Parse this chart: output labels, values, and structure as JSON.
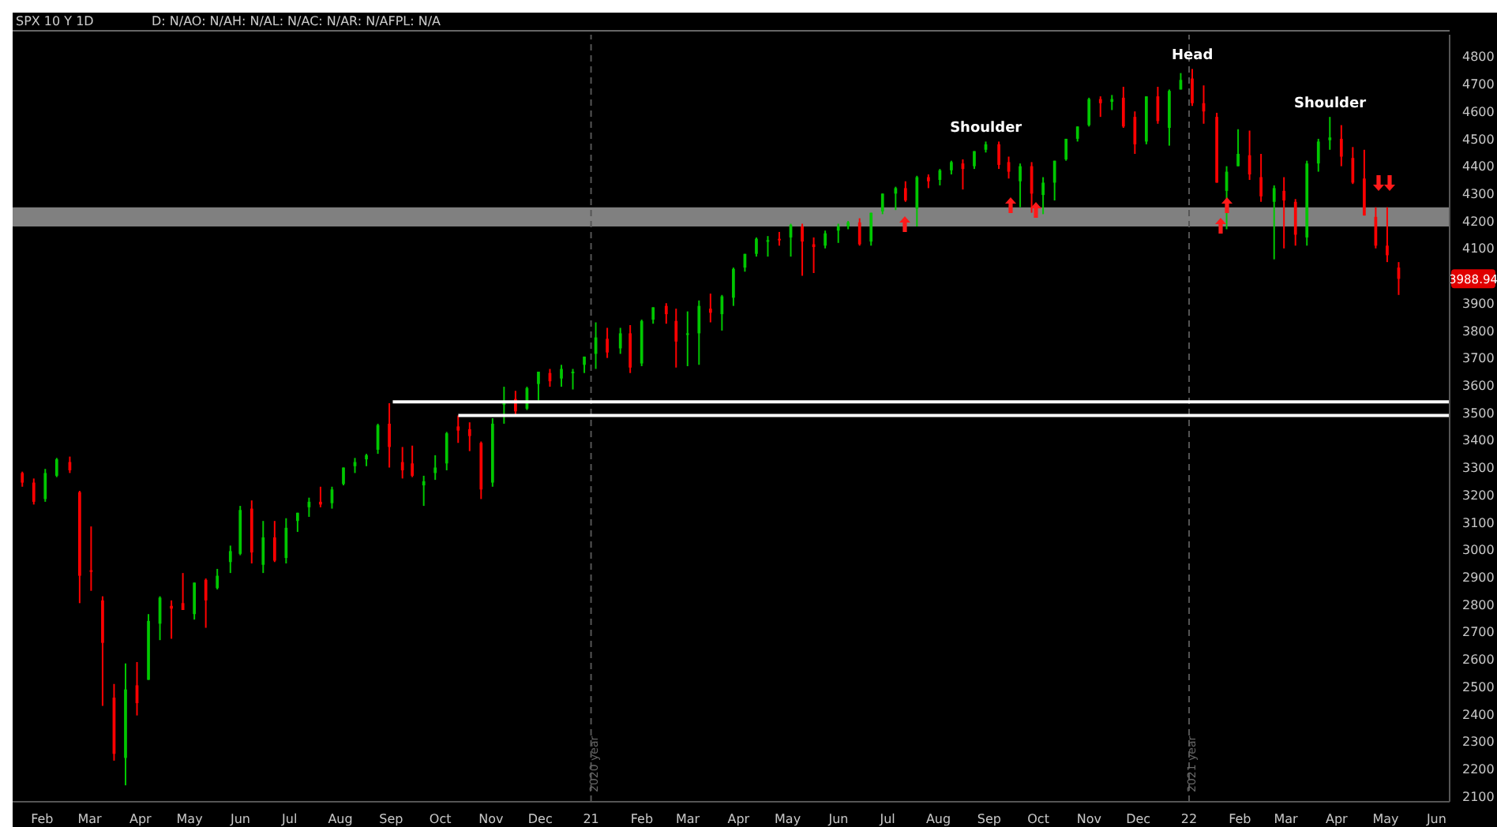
{
  "chart_data": {
    "type": "candlestick",
    "title": "SPX 10 Y 1D",
    "annotations": [
      "D: N/AO: N/AH: N/AL: N/AC: N/AR: N/AFPL: N/A",
      {
        "text": "Shoulder",
        "x": "2021-08-30",
        "y": 4490
      },
      {
        "text": "Head",
        "x": "2022-01-03",
        "y": 4755
      },
      {
        "text": "Shoulder",
        "x": "2022-03-28",
        "y": 4580
      },
      {
        "text": "3988.94",
        "y": 3988.94
      }
    ],
    "x": [
      "2020-01-20",
      "2020-01-27",
      "2020-02-03",
      "2020-02-10",
      "2020-02-18",
      "2020-02-24",
      "2020-03-02",
      "2020-03-09",
      "2020-03-16",
      "2020-03-23",
      "2020-03-30",
      "2020-04-06",
      "2020-04-13",
      "2020-04-20",
      "2020-04-27",
      "2020-05-04",
      "2020-05-11",
      "2020-05-18",
      "2020-05-26",
      "2020-06-01",
      "2020-06-08",
      "2020-06-15",
      "2020-06-22",
      "2020-06-29",
      "2020-07-06",
      "2020-07-13",
      "2020-07-20",
      "2020-07-27",
      "2020-08-03",
      "2020-08-10",
      "2020-08-17",
      "2020-08-24",
      "2020-08-31",
      "2020-09-08",
      "2020-09-14",
      "2020-09-21",
      "2020-09-28",
      "2020-10-05",
      "2020-10-12",
      "2020-10-19",
      "2020-10-26",
      "2020-11-02",
      "2020-11-09",
      "2020-11-16",
      "2020-11-23",
      "2020-11-30",
      "2020-12-07",
      "2020-12-14",
      "2020-12-21",
      "2020-12-28",
      "2021-01-04",
      "2021-01-11",
      "2021-01-19",
      "2021-01-25",
      "2021-02-01",
      "2021-02-08",
      "2021-02-16",
      "2021-02-22",
      "2021-03-01",
      "2021-03-08",
      "2021-03-15",
      "2021-03-22",
      "2021-03-29",
      "2021-04-05",
      "2021-04-12",
      "2021-04-19",
      "2021-04-26",
      "2021-05-03",
      "2021-05-10",
      "2021-05-17",
      "2021-05-24",
      "2021-06-01",
      "2021-06-07",
      "2021-06-14",
      "2021-06-21",
      "2021-06-28",
      "2021-07-06",
      "2021-07-12",
      "2021-07-19",
      "2021-07-26",
      "2021-08-02",
      "2021-08-09",
      "2021-08-16",
      "2021-08-23",
      "2021-08-30",
      "2021-09-07",
      "2021-09-13",
      "2021-09-20",
      "2021-09-27",
      "2021-10-04",
      "2021-10-11",
      "2021-10-18",
      "2021-10-25",
      "2021-11-01",
      "2021-11-08",
      "2021-11-15",
      "2021-11-22",
      "2021-11-29",
      "2021-12-06",
      "2021-12-13",
      "2021-12-20",
      "2021-12-27",
      "2022-01-03",
      "2022-01-10",
      "2022-01-18",
      "2022-01-24",
      "2022-01-31",
      "2022-02-07",
      "2022-02-14",
      "2022-02-22",
      "2022-02-28",
      "2022-03-07",
      "2022-03-14",
      "2022-03-21",
      "2022-03-28",
      "2022-04-04",
      "2022-04-11",
      "2022-04-18",
      "2022-04-25",
      "2022-05-02",
      "2022-05-09"
    ],
    "ohlc": [
      [
        3280,
        3285,
        3230,
        3245
      ],
      [
        3245,
        3260,
        3165,
        3175
      ],
      [
        3185,
        3295,
        3175,
        3280
      ],
      [
        3270,
        3335,
        3265,
        3330
      ],
      [
        3320,
        3340,
        3280,
        3290
      ],
      [
        3210,
        3215,
        2805,
        2905
      ],
      [
        2925,
        3085,
        2850,
        2920
      ],
      [
        2815,
        2830,
        2430,
        2660
      ],
      [
        2460,
        2510,
        2230,
        2255
      ],
      [
        2240,
        2585,
        2140,
        2490
      ],
      [
        2505,
        2590,
        2395,
        2440
      ],
      [
        2525,
        2765,
        2525,
        2740
      ],
      [
        2730,
        2830,
        2670,
        2825
      ],
      [
        2795,
        2815,
        2675,
        2785
      ],
      [
        2805,
        2915,
        2780,
        2780
      ],
      [
        2765,
        2880,
        2745,
        2880
      ],
      [
        2890,
        2895,
        2715,
        2815
      ],
      [
        2860,
        2930,
        2855,
        2905
      ],
      [
        2955,
        3015,
        2915,
        2995
      ],
      [
        2985,
        3160,
        2980,
        3145
      ],
      [
        3150,
        3180,
        2950,
        2990
      ],
      [
        2945,
        3105,
        2915,
        3045
      ],
      [
        3045,
        3105,
        2955,
        2960
      ],
      [
        2970,
        3115,
        2950,
        3080
      ],
      [
        3105,
        3135,
        3065,
        3135
      ],
      [
        3155,
        3190,
        3120,
        3175
      ],
      [
        3175,
        3230,
        3155,
        3165
      ],
      [
        3170,
        3230,
        3150,
        3220
      ],
      [
        3240,
        3300,
        3235,
        3300
      ],
      [
        3305,
        3335,
        3280,
        3320
      ],
      [
        3330,
        3350,
        3305,
        3345
      ],
      [
        3365,
        3460,
        3350,
        3455
      ],
      [
        3460,
        3535,
        3300,
        3375
      ],
      [
        3320,
        3375,
        3260,
        3290
      ],
      [
        3315,
        3380,
        3265,
        3270
      ],
      [
        3235,
        3270,
        3160,
        3250
      ],
      [
        3280,
        3345,
        3255,
        3300
      ],
      [
        3315,
        3430,
        3290,
        3425
      ],
      [
        3450,
        3490,
        3390,
        3435
      ],
      [
        3440,
        3465,
        3360,
        3415
      ],
      [
        3390,
        3395,
        3185,
        3220
      ],
      [
        3245,
        3480,
        3230,
        3460
      ],
      [
        3530,
        3595,
        3460,
        3535
      ],
      [
        3550,
        3580,
        3490,
        3505
      ],
      [
        3515,
        3595,
        3510,
        3590
      ],
      [
        3605,
        3650,
        3545,
        3650
      ],
      [
        3645,
        3660,
        3595,
        3615
      ],
      [
        3625,
        3675,
        3595,
        3660
      ],
      [
        3645,
        3660,
        3585,
        3650
      ],
      [
        3675,
        3705,
        3645,
        3705
      ],
      [
        3715,
        3830,
        3660,
        3775
      ],
      [
        3770,
        3810,
        3700,
        3720
      ],
      [
        3735,
        3810,
        3715,
        3790
      ],
      [
        3790,
        3820,
        3645,
        3665
      ],
      [
        3680,
        3840,
        3670,
        3835
      ],
      [
        3840,
        3885,
        3825,
        3885
      ],
      [
        3890,
        3900,
        3825,
        3860
      ],
      [
        3835,
        3880,
        3665,
        3760
      ],
      [
        3790,
        3870,
        3670,
        3790
      ],
      [
        3790,
        3910,
        3675,
        3890
      ],
      [
        3880,
        3935,
        3830,
        3865
      ],
      [
        3860,
        3930,
        3800,
        3925
      ],
      [
        3920,
        4030,
        3890,
        4025
      ],
      [
        4030,
        4080,
        4015,
        4080
      ],
      [
        4080,
        4140,
        4070,
        4135
      ],
      [
        4130,
        4145,
        4070,
        4130
      ],
      [
        4135,
        4160,
        4110,
        4130
      ],
      [
        4140,
        4190,
        4070,
        4185
      ],
      [
        4180,
        4190,
        4000,
        4125
      ],
      [
        4115,
        4140,
        4010,
        4105
      ],
      [
        4110,
        4165,
        4100,
        4155
      ],
      [
        4165,
        4190,
        4120,
        4180
      ],
      [
        4180,
        4200,
        4170,
        4195
      ],
      [
        4195,
        4210,
        4110,
        4115
      ],
      [
        4125,
        4230,
        4110,
        4230
      ],
      [
        4235,
        4300,
        4225,
        4300
      ],
      [
        4300,
        4325,
        4240,
        4320
      ],
      [
        4320,
        4345,
        4270,
        4275
      ],
      [
        4245,
        4365,
        4180,
        4360
      ],
      [
        4360,
        4370,
        4320,
        4345
      ],
      [
        4350,
        4390,
        4330,
        4385
      ],
      [
        4385,
        4420,
        4370,
        4415
      ],
      [
        4410,
        4425,
        4315,
        4390
      ],
      [
        4400,
        4455,
        4390,
        4455
      ],
      [
        4460,
        4490,
        4450,
        4480
      ],
      [
        4480,
        4490,
        4390,
        4405
      ],
      [
        4415,
        4435,
        4355,
        4380
      ],
      [
        4345,
        4410,
        4250,
        4400
      ],
      [
        4400,
        4415,
        4230,
        4300
      ],
      [
        4295,
        4360,
        4225,
        4340
      ],
      [
        4340,
        4420,
        4275,
        4420
      ],
      [
        4425,
        4500,
        4420,
        4500
      ],
      [
        4500,
        4545,
        4490,
        4545
      ],
      [
        4550,
        4650,
        4545,
        4645
      ],
      [
        4645,
        4655,
        4580,
        4630
      ],
      [
        4635,
        4660,
        4605,
        4645
      ],
      [
        4650,
        4690,
        4540,
        4545
      ],
      [
        4580,
        4600,
        4445,
        4480
      ],
      [
        4490,
        4655,
        4480,
        4655
      ],
      [
        4655,
        4690,
        4555,
        4565
      ],
      [
        4540,
        4680,
        4475,
        4675
      ],
      [
        4680,
        4740,
        4680,
        4715
      ],
      [
        4720,
        4755,
        4620,
        4630
      ],
      [
        4630,
        4695,
        4555,
        4600
      ],
      [
        4580,
        4595,
        4340,
        4340
      ],
      [
        4310,
        4400,
        4170,
        4380
      ],
      [
        4400,
        4535,
        4400,
        4445
      ],
      [
        4440,
        4530,
        4350,
        4370
      ],
      [
        4360,
        4445,
        4270,
        4290
      ],
      [
        4270,
        4330,
        4060,
        4320
      ],
      [
        4310,
        4360,
        4100,
        4275
      ],
      [
        4270,
        4280,
        4110,
        4150
      ],
      [
        4140,
        4420,
        4110,
        4410
      ],
      [
        4410,
        4500,
        4380,
        4490
      ],
      [
        4495,
        4580,
        4460,
        4505
      ],
      [
        4500,
        4550,
        4400,
        4435
      ],
      [
        4430,
        4470,
        4335,
        4340
      ],
      [
        4355,
        4460,
        4220,
        4220
      ],
      [
        4215,
        4250,
        4100,
        4110
      ],
      [
        4110,
        4250,
        4050,
        4075
      ],
      [
        4030,
        4050,
        3930,
        3988.94
      ]
    ],
    "series": [
      {
        "type": "line",
        "color": "#ffffff",
        "x": [
          "2020-09-02",
          "2022-06-09"
        ],
        "values": [
          3540,
          3540
        ]
      },
      {
        "type": "line",
        "color": "#ffffff",
        "x": [
          "2020-10-12",
          "2022-06-09"
        ],
        "values": [
          3490,
          3490
        ]
      }
    ],
    "bands": [
      {
        "axis": "y",
        "from": 4180,
        "to": 4250,
        "color": "#808080"
      }
    ],
    "ref_lines": [
      {
        "axis": "x",
        "value": "2021-01-01",
        "label": "2020 year",
        "color": "#555555",
        "line_style": "dashed"
      },
      {
        "axis": "x",
        "value": "2022-01-01",
        "label": "2021 year",
        "color": "#555555",
        "line_style": "dashed"
      }
    ],
    "xlim": [
      "2020-01-14",
      "2022-06-09"
    ],
    "xticks": [
      {
        "value": "2020-02-01",
        "label": "Feb"
      },
      {
        "value": "2020-03-01",
        "label": "Mar"
      },
      {
        "value": "2020-04-01",
        "label": "Apr"
      },
      {
        "value": "2020-05-01",
        "label": "May"
      },
      {
        "value": "2020-06-01",
        "label": "Jun"
      },
      {
        "value": "2020-07-01",
        "label": "Jul"
      },
      {
        "value": "2020-08-01",
        "label": "Aug"
      },
      {
        "value": "2020-09-01",
        "label": "Sep"
      },
      {
        "value": "2020-10-01",
        "label": "Oct"
      },
      {
        "value": "2020-11-01",
        "label": "Nov"
      },
      {
        "value": "2020-12-01",
        "label": "Dec"
      },
      {
        "value": "2021-01-01",
        "label": "21"
      },
      {
        "value": "2021-02-01",
        "label": "Feb"
      },
      {
        "value": "2021-03-01",
        "label": "Mar"
      },
      {
        "value": "2021-04-01",
        "label": "Apr"
      },
      {
        "value": "2021-05-01",
        "label": "May"
      },
      {
        "value": "2021-06-01",
        "label": "Jun"
      },
      {
        "value": "2021-07-01",
        "label": "Jul"
      },
      {
        "value": "2021-08-01",
        "label": "Aug"
      },
      {
        "value": "2021-09-01",
        "label": "Sep"
      },
      {
        "value": "2021-10-01",
        "label": "Oct"
      },
      {
        "value": "2021-11-01",
        "label": "Nov"
      },
      {
        "value": "2021-12-01",
        "label": "Dec"
      },
      {
        "value": "2022-01-01",
        "label": "22"
      },
      {
        "value": "2022-02-01",
        "label": "Feb"
      },
      {
        "value": "2022-03-01",
        "label": "Mar"
      },
      {
        "value": "2022-04-01",
        "label": "Apr"
      },
      {
        "value": "2022-05-01",
        "label": "May"
      },
      {
        "value": "2022-06-01",
        "label": "Jun"
      }
    ],
    "ylim": [
      2080,
      4880
    ],
    "yticks": [
      2100,
      2200,
      2300,
      2400,
      2500,
      2600,
      2700,
      2800,
      2900,
      3000,
      3100,
      3200,
      3300,
      3400,
      3500,
      3600,
      3700,
      3800,
      3900,
      4100,
      4200,
      4300,
      4400,
      4500,
      4600,
      4700,
      4800
    ],
    "line_style": "solid"
  }
}
